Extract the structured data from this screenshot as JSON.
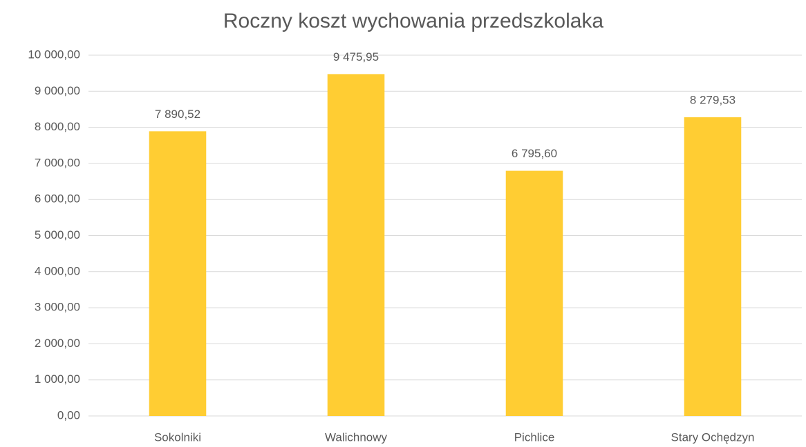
{
  "chart_data": {
    "type": "bar",
    "title": "Roczny koszt wychowania przedszkolaka",
    "categories": [
      "Sokolniki",
      "Walichnowy",
      "Pichlice",
      "Stary Ochędzyn"
    ],
    "values": [
      7890.52,
      9475.95,
      6795.6,
      8279.53
    ],
    "value_labels": [
      "7 890,52",
      "9 475,95",
      "6 795,60",
      "8 279,53"
    ],
    "color": "#ffcd33",
    "ylim": [
      0,
      10000
    ],
    "yticks": [
      {
        "value": 0,
        "label": "0,00"
      },
      {
        "value": 1000,
        "label": "1 000,00"
      },
      {
        "value": 2000,
        "label": "2 000,00"
      },
      {
        "value": 3000,
        "label": "3 000,00"
      },
      {
        "value": 4000,
        "label": "4 000,00"
      },
      {
        "value": 5000,
        "label": "5 000,00"
      },
      {
        "value": 6000,
        "label": "6 000,00"
      },
      {
        "value": 7000,
        "label": "7 000,00"
      },
      {
        "value": 8000,
        "label": "8 000,00"
      },
      {
        "value": 9000,
        "label": "9 000,00"
      },
      {
        "value": 10000,
        "label": "10 000,00"
      }
    ],
    "grid": true
  }
}
